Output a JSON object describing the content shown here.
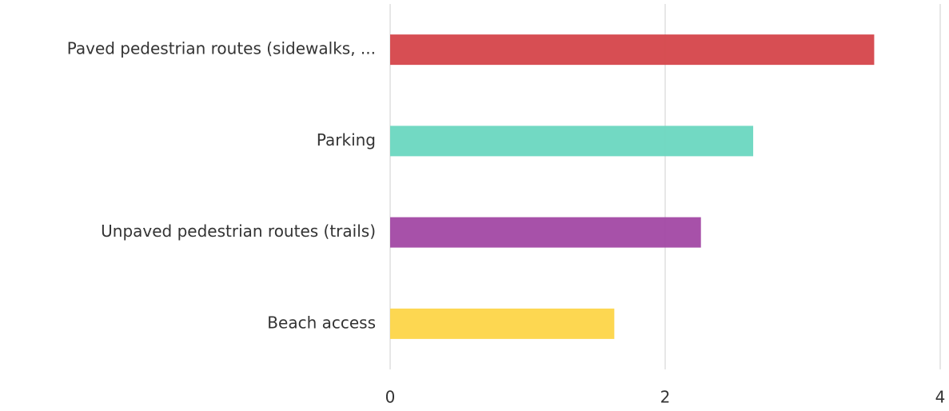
{
  "chart_data": {
    "type": "bar",
    "orientation": "horizontal",
    "categories": [
      "Paved pedestrian routes (sidewalks, ...",
      "Parking",
      "Unpaved pedestrian routes (trails)",
      "Beach access"
    ],
    "values": [
      3.52,
      2.64,
      2.26,
      1.63
    ],
    "colors": [
      "#d6484d",
      "#6dd8c1",
      "#a44ba6",
      "#fdd64b"
    ],
    "xlim": [
      0,
      4
    ],
    "xticks": [
      0,
      2,
      4
    ],
    "grid": true
  }
}
